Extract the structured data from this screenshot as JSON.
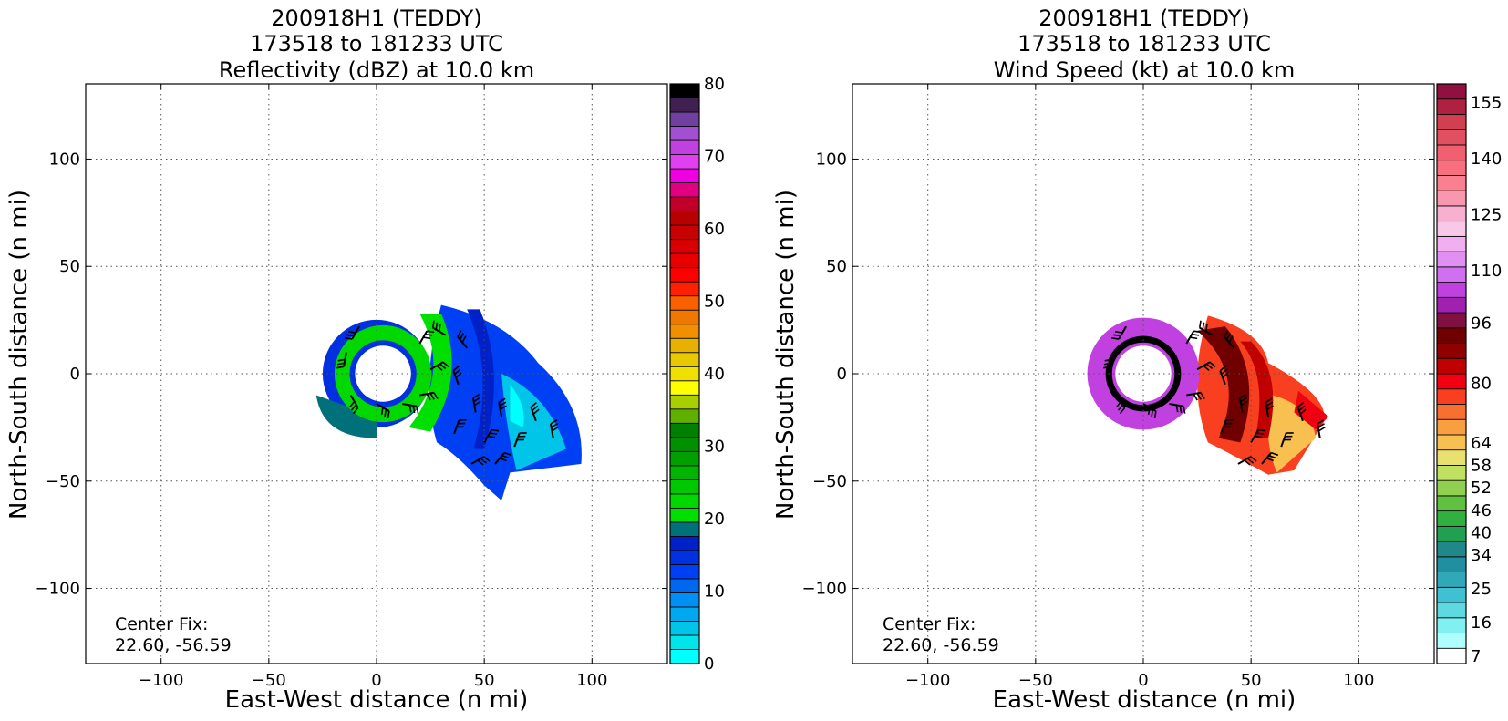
{
  "colors": {
    "reflectivity_bins": [
      "#00ffff",
      "#00e5ea",
      "#00c5e8",
      "#00a8f0",
      "#0090f5",
      "#0068f0",
      "#0040f5",
      "#0030e0",
      "#0020c8",
      "#00707a",
      "#00e000",
      "#00d800",
      "#00c800",
      "#00b400",
      "#00a000",
      "#009000",
      "#008000",
      "#60b000",
      "#a8d000",
      "#ffff00",
      "#f0e000",
      "#e8c800",
      "#e8b000",
      "#f09000",
      "#f07800",
      "#f86000",
      "#ff2000",
      "#ff0000",
      "#e80000",
      "#d80000",
      "#c80000",
      "#b80000",
      "#c00028",
      "#e00080",
      "#f000e0",
      "#e040f0",
      "#c040e0",
      "#a050d0",
      "#7040a0",
      "#402050",
      "#000000"
    ],
    "wind_bins": [
      "#ffffff",
      "#b0ffff",
      "#80f0f0",
      "#60d8e0",
      "#40c0d0",
      "#30a8b8",
      "#2090a0",
      "#208888",
      "#20a050",
      "#30b040",
      "#60c040",
      "#90d050",
      "#c0e060",
      "#e8e070",
      "#f8c050",
      "#f8a040",
      "#f87030",
      "#f84020",
      "#f00010",
      "#c00000",
      "#900000",
      "#700000",
      "#801040",
      "#a020b0",
      "#c040e0",
      "#d070f0",
      "#e090f0",
      "#f0b0f0",
      "#f8c8e8",
      "#f8b0d0",
      "#f898b0",
      "#f88090",
      "#f87080",
      "#f06070",
      "#e05060",
      "#d04050",
      "#b02040",
      "#901040"
    ],
    "eye_ring": "#000000"
  },
  "panels": [
    {
      "title_line1": "200918H1 (TEDDY)",
      "title_line2": "173518 to 181233 UTC",
      "title_line3": "Reflectivity (dBZ) at 10.0 km",
      "xlabel": "East-West distance (n mi)",
      "ylabel": "North-South distance (n mi)",
      "center_fix_label": "Center Fix:",
      "center_fix_value": "22.60, -56.59",
      "colorbar_ticks": [
        "0",
        "10",
        "20",
        "30",
        "40",
        "50",
        "60",
        "70",
        "80"
      ]
    },
    {
      "title_line1": "200918H1 (TEDDY)",
      "title_line2": "173518 to 181233 UTC",
      "title_line3": "Wind Speed (kt) at 10.0 km",
      "xlabel": "East-West distance (n mi)",
      "ylabel": "North-South distance (n mi)",
      "center_fix_label": "Center Fix:",
      "center_fix_value": "22.60, -56.59",
      "colorbar_ticks": [
        "7",
        "16",
        "25",
        "34",
        "40",
        "46",
        "52",
        "58",
        "64",
        "80",
        "96",
        "110",
        "125",
        "140",
        "155"
      ]
    }
  ],
  "chart_data": [
    {
      "type": "heatmap",
      "title": "200918H1 (TEDDY) 173518 to 181233 UTC Reflectivity (dBZ) at 10.0 km",
      "xlabel": "East-West distance (n mi)",
      "ylabel": "North-South distance (n mi)",
      "xlim": [
        -135,
        135
      ],
      "ylim": [
        -135,
        135
      ],
      "xticks": [
        -100,
        -50,
        0,
        50,
        100
      ],
      "yticks": [
        -100,
        -50,
        0,
        50,
        100
      ],
      "xtick_labels": [
        "−100",
        "−50",
        "0",
        "50",
        "100"
      ],
      "ytick_labels": [
        "−100",
        "−50",
        "0",
        "50",
        "100"
      ],
      "grid": true,
      "colorbar_range": [
        0,
        80
      ],
      "colorbar_ticks": [
        0,
        10,
        20,
        30,
        40,
        50,
        60,
        70,
        80
      ],
      "eye_center": [
        0,
        0
      ],
      "eye_radius": 13,
      "echo_extent": {
        "x": [
          -30,
          97
        ],
        "y": [
          -59,
          35
        ]
      },
      "wind_barbs": [
        {
          "x": -8,
          "y": 22,
          "dir": 210
        },
        {
          "x": -14,
          "y": 10,
          "dir": 190
        },
        {
          "x": -12,
          "y": -10,
          "dir": 150
        },
        {
          "x": 0,
          "y": -14,
          "dir": 120
        },
        {
          "x": 12,
          "y": -14,
          "dir": 100
        },
        {
          "x": 20,
          "y": -10,
          "dir": 80
        },
        {
          "x": 25,
          "y": 2,
          "dir": 60
        },
        {
          "x": 20,
          "y": 14,
          "dir": 30
        },
        {
          "x": 32,
          "y": 18,
          "dir": 300
        },
        {
          "x": 42,
          "y": 12,
          "dir": 320
        },
        {
          "x": 38,
          "y": -5,
          "dir": 340
        },
        {
          "x": 46,
          "y": -18,
          "dir": 350
        },
        {
          "x": 36,
          "y": -28,
          "dir": 20
        },
        {
          "x": 50,
          "y": -32,
          "dir": 30
        },
        {
          "x": 58,
          "y": -20,
          "dir": 350
        },
        {
          "x": 64,
          "y": -34,
          "dir": 20
        },
        {
          "x": 74,
          "y": -22,
          "dir": 340
        },
        {
          "x": 82,
          "y": -30,
          "dir": 350
        },
        {
          "x": 55,
          "y": -42,
          "dir": 40
        },
        {
          "x": 44,
          "y": -42,
          "dir": 60
        }
      ],
      "center_fix": [
        22.6,
        -56.59
      ]
    },
    {
      "type": "heatmap",
      "title": "200918H1 (TEDDY) 173518 to 181233 UTC Wind Speed (kt) at 10.0 km",
      "xlabel": "East-West distance (n mi)",
      "ylabel": "North-South distance (n mi)",
      "xlim": [
        -135,
        135
      ],
      "ylim": [
        -135,
        135
      ],
      "xticks": [
        -100,
        -50,
        0,
        50,
        100
      ],
      "yticks": [
        -100,
        -50,
        0,
        50,
        100
      ],
      "xtick_labels": [
        "−100",
        "−50",
        "0",
        "50",
        "100"
      ],
      "ytick_labels": [
        "−100",
        "−50",
        "0",
        "50",
        "100"
      ],
      "grid": true,
      "colorbar_range": [
        5,
        160
      ],
      "colorbar_ticks": [
        7,
        16,
        25,
        34,
        40,
        46,
        52,
        58,
        64,
        80,
        96,
        110,
        125,
        140,
        155
      ],
      "eye_center": [
        0,
        0
      ],
      "eye_radius": 13,
      "echo_extent": {
        "x": [
          -22,
          86
        ],
        "y": [
          -47,
          27
        ]
      },
      "wind_barbs": [
        {
          "x": -8,
          "y": 22,
          "dir": 210
        },
        {
          "x": -14,
          "y": 10,
          "dir": 190
        },
        {
          "x": -12,
          "y": -10,
          "dir": 150
        },
        {
          "x": 0,
          "y": -14,
          "dir": 120
        },
        {
          "x": 12,
          "y": -14,
          "dir": 100
        },
        {
          "x": 20,
          "y": -10,
          "dir": 80
        },
        {
          "x": 25,
          "y": 2,
          "dir": 60
        },
        {
          "x": 20,
          "y": 14,
          "dir": 30
        },
        {
          "x": 32,
          "y": 18,
          "dir": 300
        },
        {
          "x": 42,
          "y": 12,
          "dir": 320
        },
        {
          "x": 38,
          "y": -5,
          "dir": 340
        },
        {
          "x": 46,
          "y": -18,
          "dir": 350
        },
        {
          "x": 36,
          "y": -28,
          "dir": 20
        },
        {
          "x": 50,
          "y": -32,
          "dir": 30
        },
        {
          "x": 58,
          "y": -20,
          "dir": 350
        },
        {
          "x": 64,
          "y": -34,
          "dir": 20
        },
        {
          "x": 74,
          "y": -22,
          "dir": 340
        },
        {
          "x": 82,
          "y": -30,
          "dir": 350
        },
        {
          "x": 55,
          "y": -42,
          "dir": 40
        },
        {
          "x": 44,
          "y": -42,
          "dir": 60
        }
      ],
      "center_fix": [
        22.6,
        -56.59
      ]
    }
  ]
}
